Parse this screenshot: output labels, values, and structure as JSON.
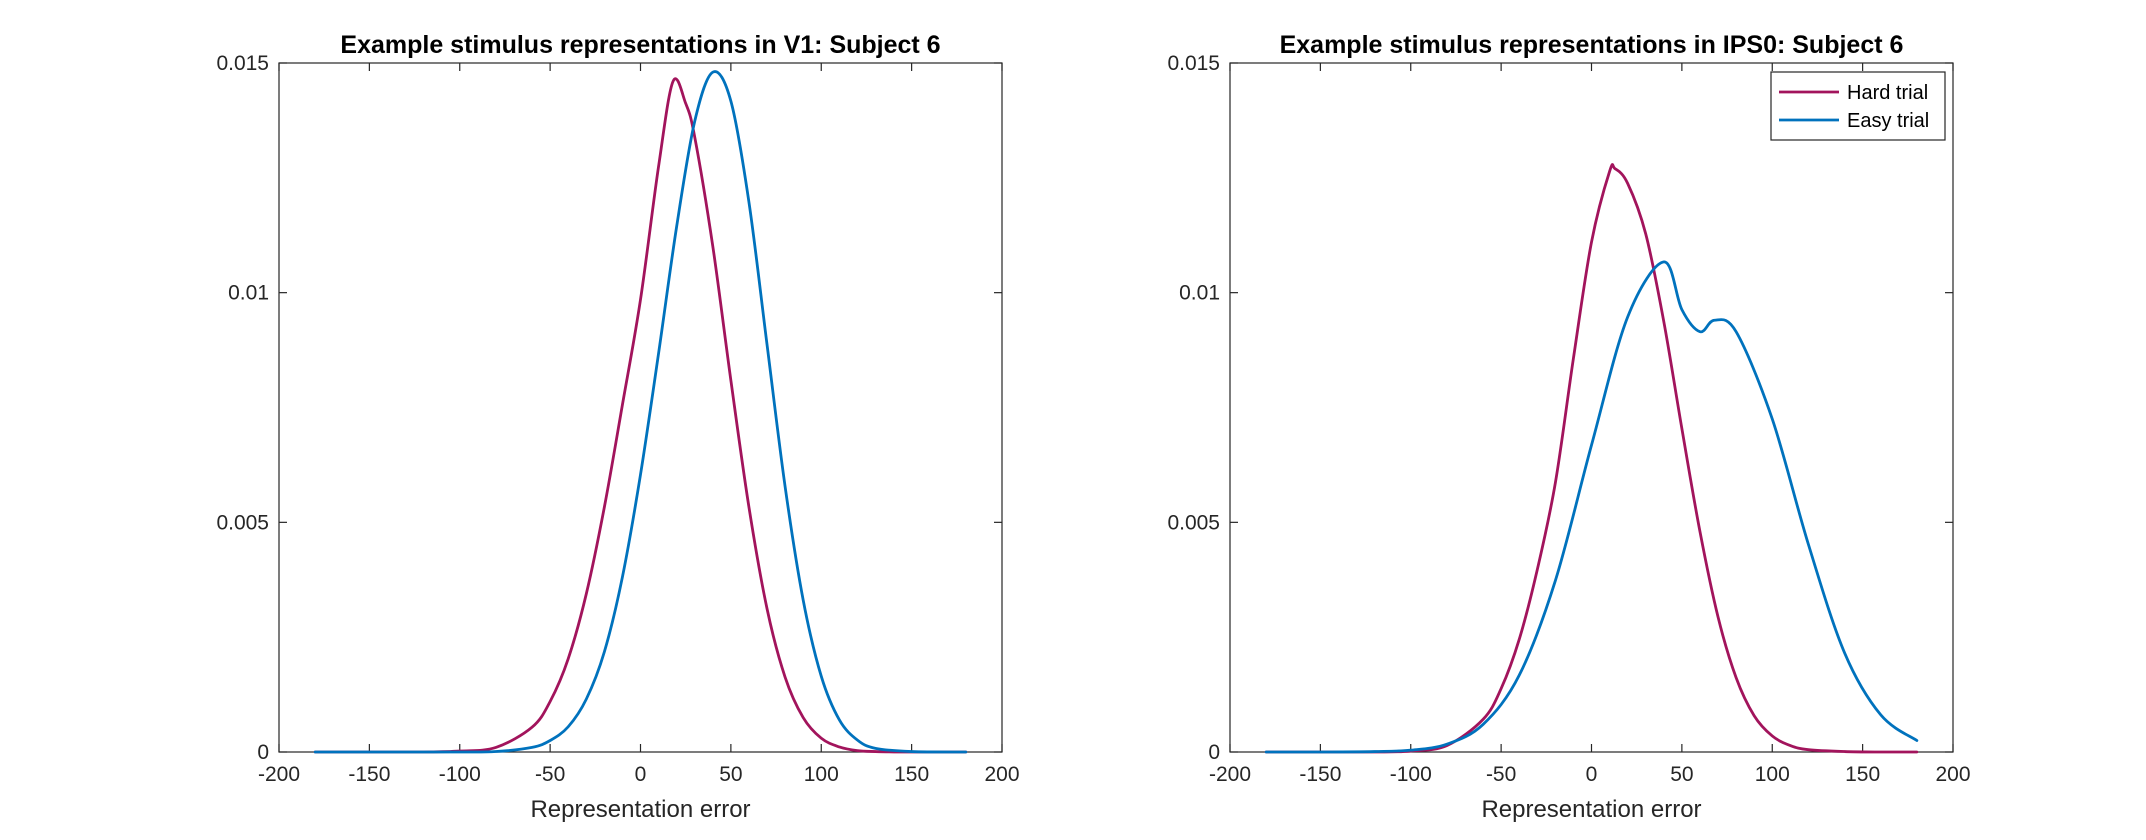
{
  "chart_data": [
    {
      "type": "line",
      "title": "Example stimulus representations in V1: Subject 6",
      "xlabel": "Representation error",
      "ylabel": "",
      "xlim": [
        -200,
        200
      ],
      "ylim": [
        0,
        0.015
      ],
      "xticks": [
        -200,
        -150,
        -100,
        -50,
        0,
        50,
        100,
        150,
        200
      ],
      "yticks": [
        0,
        0.005,
        0.01,
        0.015
      ],
      "xtick_labels": [
        "-200",
        "-150",
        "-100",
        "-50",
        "0",
        "50",
        "100",
        "150",
        "200"
      ],
      "ytick_labels": [
        "0",
        "0.005",
        "0.01",
        "0.015"
      ],
      "grid": false,
      "legend": null,
      "series": [
        {
          "x": [
            -180,
            -150,
            -120,
            -100,
            -80,
            -60,
            -50,
            -40,
            -30,
            -20,
            -10,
            0,
            10,
            18,
            25,
            30,
            40,
            50,
            60,
            70,
            80,
            90,
            100,
            110,
            120,
            130,
            150,
            180
          ],
          "y": [
            0,
            0,
            0,
            2e-05,
            0.0001,
            0.00054,
            0.0011,
            0.00203,
            0.00344,
            0.00533,
            0.00756,
            0.00985,
            0.01275,
            0.0146,
            0.01412,
            0.01339,
            0.01101,
            0.00809,
            0.00533,
            0.00312,
            0.00163,
            0.00075,
            0.0003,
            0.00011,
            3e-05,
            1e-05,
            0,
            0
          ],
          "color": "#A2145C"
        },
        {
          "x": [
            -180,
            -150,
            -120,
            -100,
            -80,
            -60,
            -50,
            -40,
            -30,
            -20,
            -10,
            0,
            10,
            20,
            30,
            40,
            50,
            60,
            70,
            80,
            90,
            100,
            110,
            120,
            130,
            150,
            180
          ],
          "y": [
            0,
            0,
            0,
            0,
            1e-05,
            0.0001,
            0.00025,
            0.00055,
            0.00115,
            0.00218,
            0.00381,
            0.00604,
            0.00868,
            0.01144,
            0.01373,
            0.0148,
            0.01417,
            0.01197,
            0.00887,
            0.00578,
            0.00331,
            0.00165,
            0.0007,
            0.00026,
            8e-05,
            1e-05,
            0
          ],
          "color": "#0072BD"
        }
      ]
    },
    {
      "type": "line",
      "title": "Example stimulus representations in IPS0: Subject 6",
      "xlabel": "Representation error",
      "ylabel": "",
      "xlim": [
        -200,
        200
      ],
      "ylim": [
        0,
        0.015
      ],
      "xticks": [
        -200,
        -150,
        -100,
        -50,
        0,
        50,
        100,
        150,
        200
      ],
      "yticks": [
        0,
        0.005,
        0.01,
        0.015
      ],
      "xtick_labels": [
        "-200",
        "-150",
        "-100",
        "-50",
        "0",
        "50",
        "100",
        "150",
        "200"
      ],
      "ytick_labels": [
        "0",
        "0.005",
        "0.01",
        "0.015"
      ],
      "grid": false,
      "legend": "top-right",
      "series": [
        {
          "name": "Hard trial",
          "x": [
            -180,
            -150,
            -120,
            -100,
            -80,
            -60,
            -50,
            -40,
            -30,
            -20,
            -10,
            0,
            10,
            13,
            20,
            30,
            40,
            50,
            60,
            70,
            80,
            90,
            100,
            110,
            120,
            140,
            160,
            180
          ],
          "y": [
            0,
            0,
            0,
            2e-05,
            0.00014,
            0.00071,
            0.00138,
            0.00245,
            0.00397,
            0.00586,
            0.00857,
            0.0111,
            0.01264,
            0.0127,
            0.01238,
            0.01128,
            0.00937,
            0.00704,
            0.0048,
            0.00294,
            0.00162,
            0.00079,
            0.00035,
            0.00014,
            5e-05,
            1e-05,
            0,
            0
          ],
          "color": "#A2145C"
        },
        {
          "name": "Easy trial",
          "x": [
            -180,
            -150,
            -120,
            -100,
            -80,
            -60,
            -40,
            -20,
            0,
            20,
            40,
            50,
            60,
            68,
            80,
            100,
            120,
            140,
            160,
            180
          ],
          "y": [
            0,
            0,
            1e-05,
            4e-05,
            0.00017,
            0.0006,
            0.00167,
            0.00373,
            0.00668,
            0.00947,
            0.01067,
            0.00963,
            0.00915,
            0.0094,
            0.00915,
            0.00725,
            0.00452,
            0.00216,
            0.00081,
            0.00025
          ],
          "color": "#0072BD"
        }
      ]
    }
  ]
}
